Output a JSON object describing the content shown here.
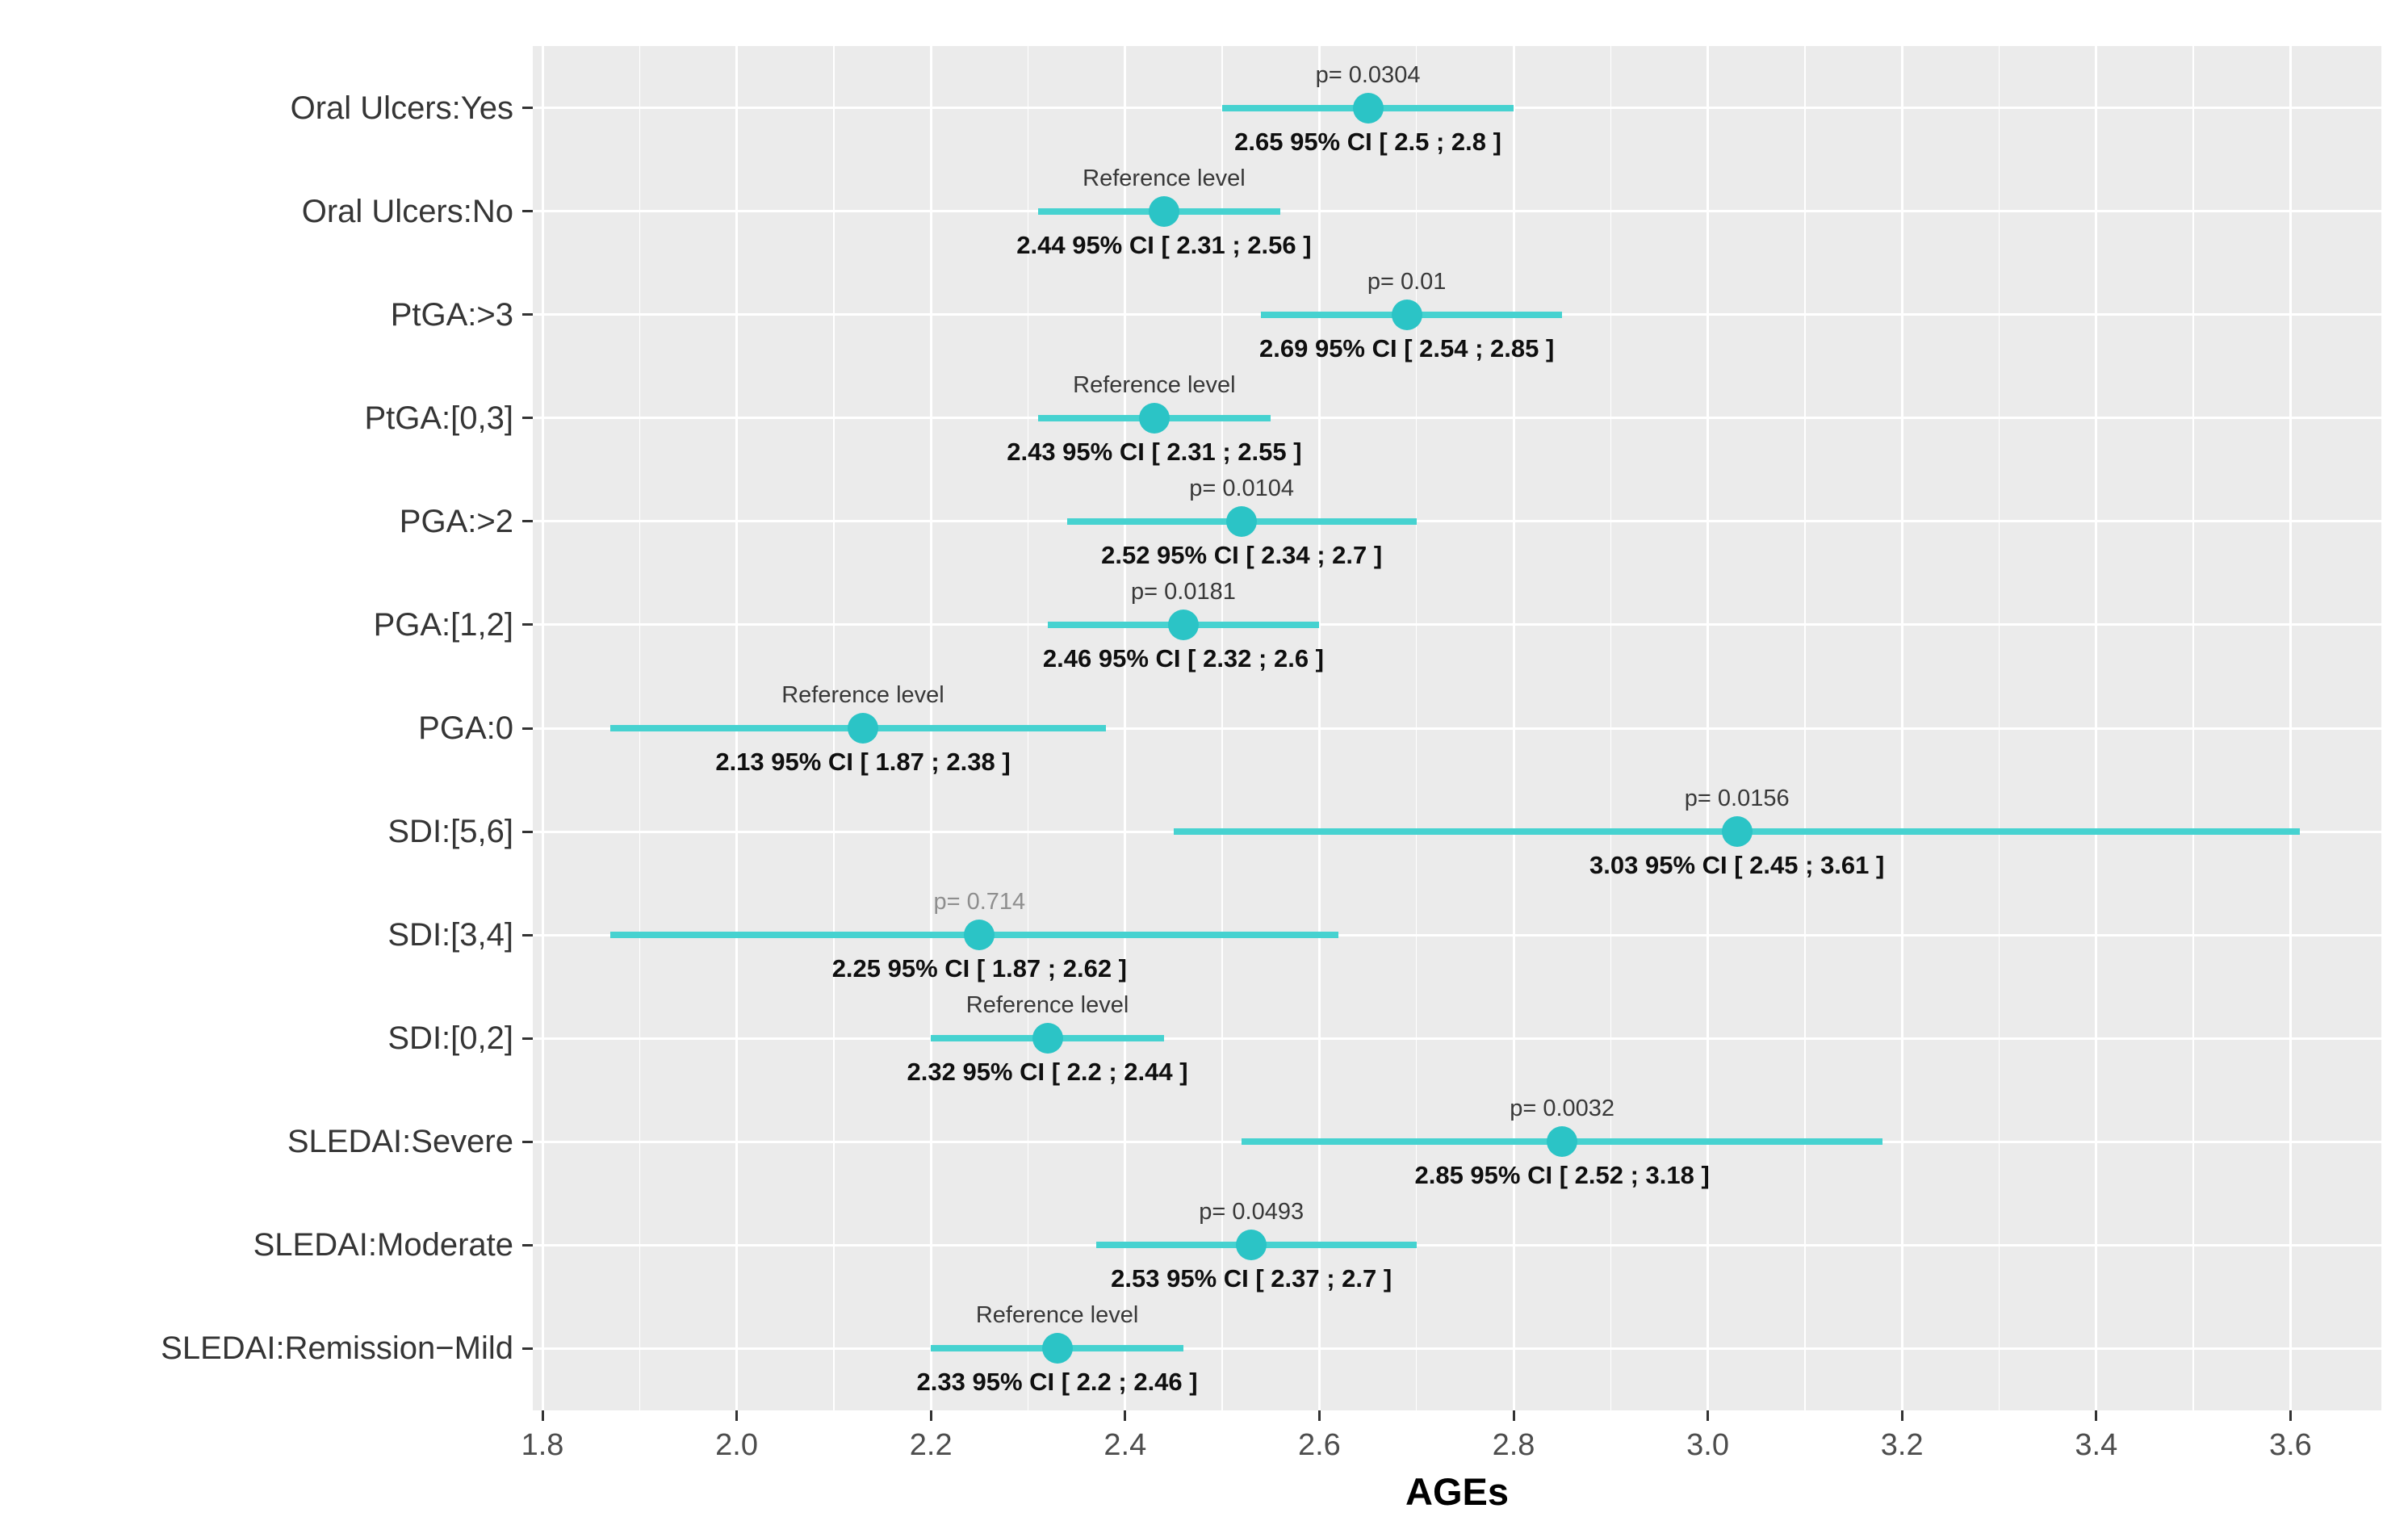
{
  "chart_data": {
    "type": "scatter",
    "subtype": "forest-plot",
    "title": "",
    "xlabel": "AGEs",
    "ylabel": "",
    "xlim": [
      1.79,
      3.695
    ],
    "grid": "on",
    "x_ticks": [
      {
        "value": 1.8,
        "label": "1.8"
      },
      {
        "value": 2.0,
        "label": "2.0"
      },
      {
        "value": 2.2,
        "label": "2.2"
      },
      {
        "value": 2.4,
        "label": "2.4"
      },
      {
        "value": 2.6,
        "label": "2.6"
      },
      {
        "value": 2.8,
        "label": "2.8"
      },
      {
        "value": 3.0,
        "label": "3.0"
      },
      {
        "value": 3.2,
        "label": "3.2"
      },
      {
        "value": 3.4,
        "label": "3.4"
      },
      {
        "value": 3.6,
        "label": "3.6"
      }
    ],
    "rows": [
      {
        "label": "Oral Ulcers:Yes",
        "annotation": "p= 0.0304",
        "annotation_type": "p-value",
        "muted": false,
        "estimate": 2.65,
        "ci_low": 2.5,
        "ci_high": 2.8,
        "ci_text": "2.65 95% CI [ 2.5 ; 2.8 ]"
      },
      {
        "label": "Oral Ulcers:No",
        "annotation": "Reference level",
        "annotation_type": "reference",
        "muted": false,
        "estimate": 2.44,
        "ci_low": 2.31,
        "ci_high": 2.56,
        "ci_text": "2.44 95% CI [ 2.31 ; 2.56 ]"
      },
      {
        "label": "PtGA:>3",
        "annotation": "p= 0.01",
        "annotation_type": "p-value",
        "muted": false,
        "estimate": 2.69,
        "ci_low": 2.54,
        "ci_high": 2.85,
        "ci_text": "2.69 95% CI [ 2.54 ; 2.85 ]"
      },
      {
        "label": "PtGA:[0,3]",
        "annotation": "Reference level",
        "annotation_type": "reference",
        "muted": false,
        "estimate": 2.43,
        "ci_low": 2.31,
        "ci_high": 2.55,
        "ci_text": "2.43 95% CI [ 2.31 ; 2.55 ]"
      },
      {
        "label": "PGA:>2",
        "annotation": "p= 0.0104",
        "annotation_type": "p-value",
        "muted": false,
        "estimate": 2.52,
        "ci_low": 2.34,
        "ci_high": 2.7,
        "ci_text": "2.52 95% CI [ 2.34 ; 2.7 ]"
      },
      {
        "label": "PGA:[1,2]",
        "annotation": "p= 0.0181",
        "annotation_type": "p-value",
        "muted": false,
        "estimate": 2.46,
        "ci_low": 2.32,
        "ci_high": 2.6,
        "ci_text": "2.46 95% CI [ 2.32 ; 2.6 ]"
      },
      {
        "label": "PGA:0",
        "annotation": "Reference level",
        "annotation_type": "reference",
        "muted": false,
        "estimate": 2.13,
        "ci_low": 1.87,
        "ci_high": 2.38,
        "ci_text": "2.13 95% CI [ 1.87 ; 2.38 ]"
      },
      {
        "label": "SDI:[5,6]",
        "annotation": "p= 0.0156",
        "annotation_type": "p-value",
        "muted": false,
        "estimate": 3.03,
        "ci_low": 2.45,
        "ci_high": 3.61,
        "ci_text": "3.03 95% CI [ 2.45 ; 3.61 ]"
      },
      {
        "label": "SDI:[3,4]",
        "annotation": "p= 0.714",
        "annotation_type": "p-value",
        "muted": true,
        "estimate": 2.25,
        "ci_low": 1.87,
        "ci_high": 2.62,
        "ci_text": "2.25 95% CI [ 1.87 ; 2.62 ]"
      },
      {
        "label": "SDI:[0,2]",
        "annotation": "Reference level",
        "annotation_type": "reference",
        "muted": false,
        "estimate": 2.32,
        "ci_low": 2.2,
        "ci_high": 2.44,
        "ci_text": "2.32 95% CI [ 2.2 ; 2.44 ]"
      },
      {
        "label": "SLEDAI:Severe",
        "annotation": "p= 0.0032",
        "annotation_type": "p-value",
        "muted": false,
        "estimate": 2.85,
        "ci_low": 2.52,
        "ci_high": 3.18,
        "ci_text": "2.85 95% CI [ 2.52 ; 3.18 ]"
      },
      {
        "label": "SLEDAI:Moderate",
        "annotation": "p= 0.0493",
        "annotation_type": "p-value",
        "muted": false,
        "estimate": 2.53,
        "ci_low": 2.37,
        "ci_high": 2.7,
        "ci_text": "2.53 95% CI [ 2.37 ; 2.7 ]"
      },
      {
        "label": "SLEDAI:Remission−Mild",
        "annotation": "Reference level",
        "annotation_type": "reference",
        "muted": false,
        "estimate": 2.33,
        "ci_low": 2.2,
        "ci_high": 2.46,
        "ci_text": "2.33 95% CI [ 2.2 ; 2.46 ]"
      }
    ],
    "legend": "none",
    "colors": {
      "panel_background": "#EBEBEB",
      "gridline": "#FFFFFF",
      "ci_line": "#46D2D0",
      "estimate_point": "#2BC4C6",
      "annotation_text": "#383838",
      "annotation_text_muted": "#8E8E8E",
      "ci_text": "#0F0F0F",
      "axis_tick_text": "#4D4D4D",
      "category_text": "#353535",
      "tick_mark": "#333333"
    }
  }
}
